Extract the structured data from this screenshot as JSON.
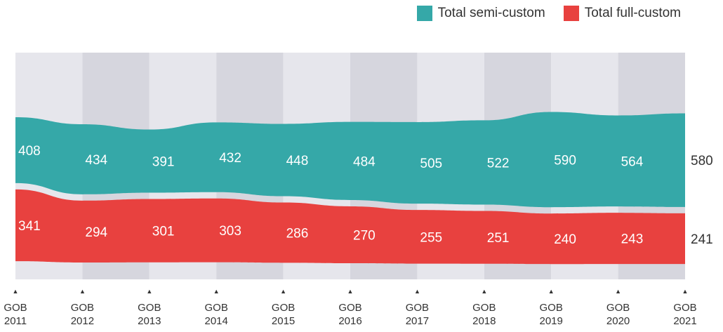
{
  "chart_data": {
    "type": "area",
    "categories": [
      "GOB 2011",
      "GOB 2012",
      "GOB 2013",
      "GOB 2014",
      "GOB 2015",
      "GOB 2016",
      "GOB 2017",
      "GOB 2018",
      "GOB 2019",
      "GOB 2020",
      "GOB 2021"
    ],
    "tick_labels": [
      [
        "GOB",
        "2011"
      ],
      [
        "GOB",
        "2012"
      ],
      [
        "GOB",
        "2013"
      ],
      [
        "GOB",
        "2014"
      ],
      [
        "GOB",
        "2015"
      ],
      [
        "GOB",
        "2016"
      ],
      [
        "GOB",
        "2017"
      ],
      [
        "GOB",
        "2018"
      ],
      [
        "GOB",
        "2019"
      ],
      [
        "GOB",
        "2020"
      ],
      [
        "GOB",
        "2021"
      ]
    ],
    "series": [
      {
        "name": "Total semi-custom",
        "color": "#35a8a8",
        "values": [
          408,
          434,
          391,
          432,
          448,
          484,
          505,
          522,
          590,
          564,
          580
        ]
      },
      {
        "name": "Total full-custom",
        "color": "#e8413f",
        "values": [
          341,
          294,
          301,
          303,
          286,
          270,
          255,
          251,
          240,
          243,
          241
        ]
      }
    ],
    "grid": false,
    "legend_position": "top-right"
  },
  "legend": {
    "items": [
      {
        "label": "Total semi-custom",
        "color": "#35a8a8"
      },
      {
        "label": "Total full-custom",
        "color": "#e8413f"
      }
    ]
  }
}
